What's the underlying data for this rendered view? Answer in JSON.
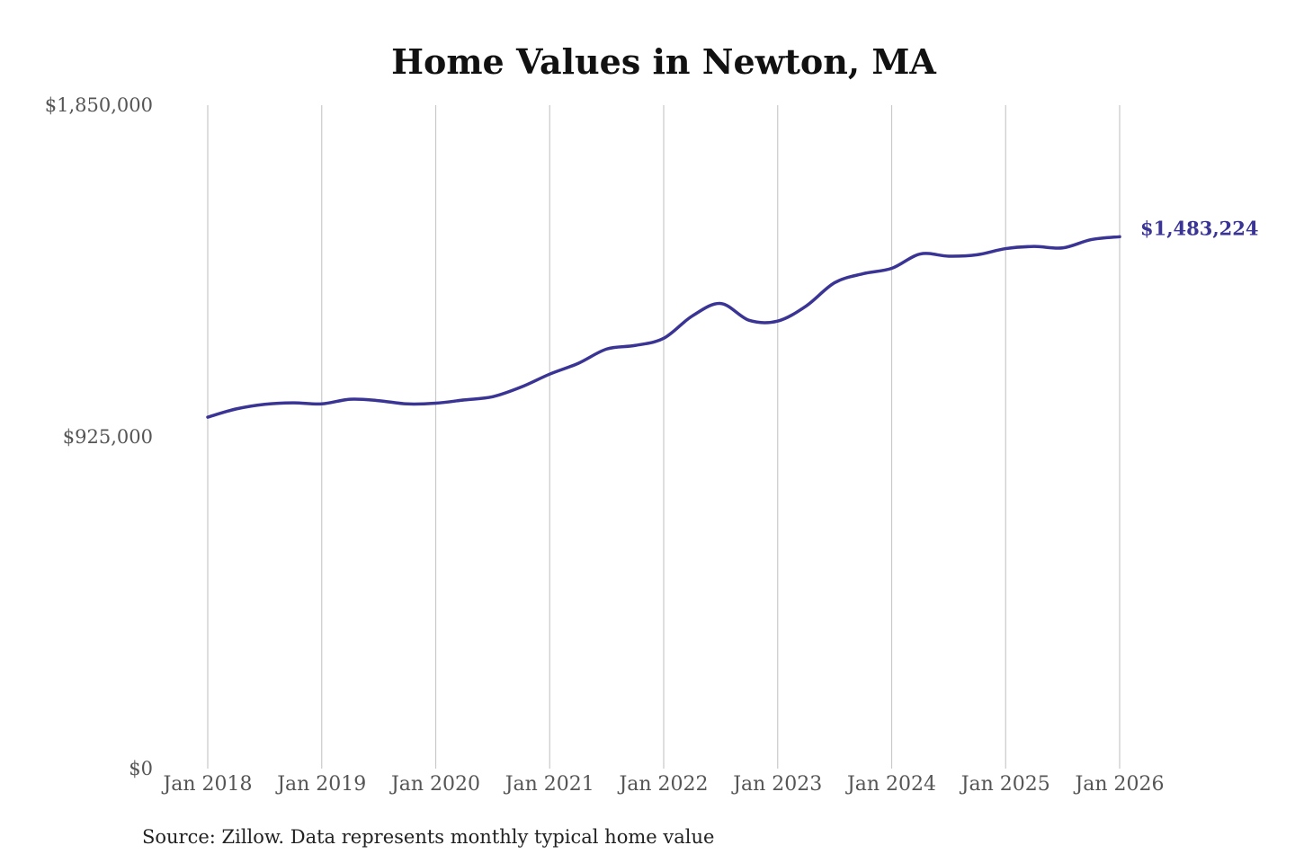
{
  "chart_data": {
    "type": "line",
    "title": "Home Values in Newton, MA",
    "xlabel": "",
    "ylabel": "",
    "ylim": [
      0,
      1850000
    ],
    "y_ticks": [
      {
        "value": 0,
        "label": "$0"
      },
      {
        "value": 925000,
        "label": "$925,000"
      },
      {
        "value": 1850000,
        "label": "$1,850,000"
      }
    ],
    "x_ticks": [
      {
        "value": 2018,
        "label": "Jan 2018"
      },
      {
        "value": 2019,
        "label": "Jan 2019"
      },
      {
        "value": 2020,
        "label": "Jan 2020"
      },
      {
        "value": 2021,
        "label": "Jan 2021"
      },
      {
        "value": 2022,
        "label": "Jan 2022"
      },
      {
        "value": 2023,
        "label": "Jan 2023"
      },
      {
        "value": 2024,
        "label": "Jan 2024"
      },
      {
        "value": 2025,
        "label": "Jan 2025"
      },
      {
        "value": 2026,
        "label": "Jan 2026"
      }
    ],
    "xlim": [
      2018,
      2026
    ],
    "grid": "vertical",
    "series": [
      {
        "color": "#3a3494",
        "x": [
          2018.0,
          2018.25,
          2018.5,
          2018.75,
          2019.0,
          2019.25,
          2019.5,
          2019.75,
          2020.0,
          2020.25,
          2020.5,
          2020.75,
          2021.0,
          2021.25,
          2021.5,
          2021.75,
          2022.0,
          2022.25,
          2022.5,
          2022.75,
          2023.0,
          2023.25,
          2023.5,
          2023.75,
          2024.0,
          2024.25,
          2024.5,
          2024.75,
          2025.0,
          2025.25,
          2025.5,
          2025.75,
          2026.0
        ],
        "values": [
          980000,
          1003000,
          1016000,
          1020000,
          1017000,
          1030000,
          1026000,
          1017000,
          1019000,
          1028000,
          1037000,
          1064000,
          1100000,
          1130000,
          1170000,
          1180000,
          1200000,
          1262000,
          1297000,
          1250000,
          1248000,
          1290000,
          1355000,
          1380000,
          1395000,
          1435000,
          1429000,
          1433000,
          1450000,
          1456000,
          1452000,
          1475000,
          1483224
        ]
      }
    ],
    "end_label": "$1,483,224",
    "source_note": "Source: Zillow. Data represents monthly typical home value"
  }
}
